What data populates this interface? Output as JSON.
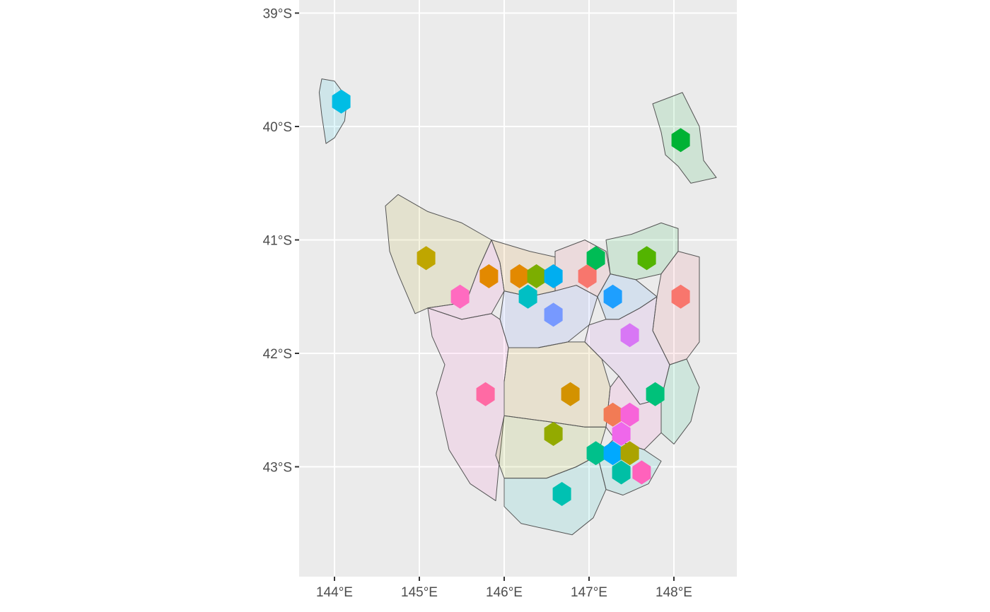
{
  "chart_data": {
    "type": "scatter",
    "subtype": "hexagon map of Tasmania regions",
    "background": "#ebebeb",
    "grid": true,
    "legend": "none",
    "xlim": [
      143.6,
      148.75
    ],
    "ylim": [
      -43.97,
      -39.0
    ],
    "x_ticks": [
      144,
      145,
      146,
      147,
      148
    ],
    "x_tick_labels": [
      "144°E",
      "145°E",
      "146°E",
      "147°E",
      "148°E"
    ],
    "y_ticks": [
      -39,
      -40,
      -41,
      -42,
      -43
    ],
    "y_tick_labels": [
      "39°S",
      "40°S",
      "41°S",
      "42°S",
      "43°S"
    ],
    "regions": [
      {
        "color": "#00c0e0",
        "outline": [
          [
            143.85,
            -39.58
          ],
          [
            144.0,
            -39.6
          ],
          [
            144.15,
            -39.75
          ],
          [
            144.12,
            -39.95
          ],
          [
            144.0,
            -40.1
          ],
          [
            143.9,
            -40.15
          ],
          [
            143.85,
            -39.9
          ],
          [
            143.82,
            -39.7
          ]
        ]
      },
      {
        "color": "#00b030",
        "outline": [
          [
            147.75,
            -39.8
          ],
          [
            148.1,
            -39.7
          ],
          [
            148.3,
            -40.0
          ],
          [
            148.35,
            -40.3
          ],
          [
            148.5,
            -40.45
          ],
          [
            148.2,
            -40.5
          ],
          [
            148.05,
            -40.35
          ],
          [
            147.9,
            -40.25
          ],
          [
            147.85,
            -40.05
          ]
        ]
      },
      {
        "color": "#b0a000",
        "outline": [
          [
            144.6,
            -40.7
          ],
          [
            144.75,
            -40.6
          ],
          [
            145.1,
            -40.75
          ],
          [
            145.5,
            -40.85
          ],
          [
            145.85,
            -41.0
          ],
          [
            145.7,
            -41.25
          ],
          [
            145.55,
            -41.55
          ],
          [
            145.1,
            -41.6
          ],
          [
            144.95,
            -41.65
          ],
          [
            144.75,
            -41.3
          ],
          [
            144.65,
            -41.1
          ]
        ]
      },
      {
        "color": "#ff66cc",
        "outline": [
          [
            145.85,
            -41.0
          ],
          [
            145.95,
            -41.2
          ],
          [
            146.0,
            -41.45
          ],
          [
            145.85,
            -41.65
          ],
          [
            145.5,
            -41.7
          ],
          [
            145.1,
            -41.6
          ],
          [
            145.55,
            -41.55
          ],
          [
            145.7,
            -41.25
          ]
        ]
      },
      {
        "color": "#e08000",
        "outline": [
          [
            145.85,
            -41.0
          ],
          [
            146.3,
            -41.1
          ],
          [
            146.6,
            -41.15
          ],
          [
            146.6,
            -41.45
          ],
          [
            146.3,
            -41.5
          ],
          [
            146.0,
            -41.45
          ],
          [
            145.95,
            -41.2
          ]
        ]
      },
      {
        "color": "#6080ff",
        "outline": [
          [
            146.0,
            -41.45
          ],
          [
            146.3,
            -41.5
          ],
          [
            146.6,
            -41.45
          ],
          [
            146.85,
            -41.4
          ],
          [
            147.1,
            -41.5
          ],
          [
            147.0,
            -41.75
          ],
          [
            146.75,
            -41.9
          ],
          [
            146.4,
            -41.95
          ],
          [
            146.05,
            -41.95
          ],
          [
            145.95,
            -41.7
          ]
        ]
      },
      {
        "color": "#f06070",
        "outline": [
          [
            146.6,
            -41.1
          ],
          [
            146.95,
            -41.0
          ],
          [
            147.2,
            -41.1
          ],
          [
            147.25,
            -41.3
          ],
          [
            147.1,
            -41.5
          ],
          [
            146.85,
            -41.4
          ],
          [
            146.6,
            -41.45
          ]
        ]
      },
      {
        "color": "#00b030",
        "outline": [
          [
            147.2,
            -41.0
          ],
          [
            147.5,
            -40.95
          ],
          [
            147.85,
            -40.85
          ],
          [
            148.05,
            -40.9
          ],
          [
            148.05,
            -41.1
          ],
          [
            147.85,
            -41.3
          ],
          [
            147.55,
            -41.35
          ],
          [
            147.25,
            -41.3
          ]
        ]
      },
      {
        "color": "#f06070",
        "outline": [
          [
            147.85,
            -41.3
          ],
          [
            148.05,
            -41.1
          ],
          [
            148.3,
            -41.15
          ],
          [
            148.3,
            -41.6
          ],
          [
            148.3,
            -41.9
          ],
          [
            148.15,
            -42.05
          ],
          [
            147.95,
            -42.1
          ],
          [
            147.75,
            -41.8
          ],
          [
            147.8,
            -41.5
          ]
        ]
      },
      {
        "color": "#3090ff",
        "outline": [
          [
            147.1,
            -41.5
          ],
          [
            147.25,
            -41.3
          ],
          [
            147.55,
            -41.35
          ],
          [
            147.8,
            -41.5
          ],
          [
            147.6,
            -41.6
          ],
          [
            147.35,
            -41.7
          ],
          [
            147.2,
            -41.7
          ]
        ]
      },
      {
        "color": "#d070f0",
        "outline": [
          [
            147.0,
            -41.75
          ],
          [
            147.2,
            -41.7
          ],
          [
            147.35,
            -41.7
          ],
          [
            147.6,
            -41.6
          ],
          [
            147.8,
            -41.5
          ],
          [
            147.75,
            -41.8
          ],
          [
            147.95,
            -42.1
          ],
          [
            147.85,
            -42.4
          ],
          [
            147.6,
            -42.45
          ],
          [
            147.35,
            -42.2
          ],
          [
            147.15,
            -42.05
          ],
          [
            146.95,
            -41.9
          ]
        ]
      },
      {
        "color": "#00c070",
        "outline": [
          [
            147.95,
            -42.1
          ],
          [
            148.15,
            -42.05
          ],
          [
            148.3,
            -42.3
          ],
          [
            148.2,
            -42.6
          ],
          [
            148.0,
            -42.8
          ],
          [
            147.85,
            -42.7
          ],
          [
            147.85,
            -42.4
          ]
        ]
      },
      {
        "color": "#d09000",
        "outline": [
          [
            146.05,
            -41.95
          ],
          [
            146.4,
            -41.95
          ],
          [
            146.75,
            -41.9
          ],
          [
            146.95,
            -41.9
          ],
          [
            147.15,
            -42.05
          ],
          [
            147.25,
            -42.3
          ],
          [
            147.2,
            -42.65
          ],
          [
            146.95,
            -42.65
          ],
          [
            146.5,
            -42.6
          ],
          [
            146.0,
            -42.55
          ],
          [
            146.0,
            -42.25
          ]
        ]
      },
      {
        "color": "#ff66cc",
        "outline": [
          [
            145.1,
            -41.6
          ],
          [
            145.5,
            -41.7
          ],
          [
            145.85,
            -41.65
          ],
          [
            145.95,
            -41.7
          ],
          [
            146.05,
            -41.95
          ],
          [
            146.0,
            -42.25
          ],
          [
            146.0,
            -42.55
          ],
          [
            145.95,
            -42.9
          ],
          [
            145.9,
            -43.3
          ],
          [
            145.6,
            -43.15
          ],
          [
            145.35,
            -42.85
          ],
          [
            145.2,
            -42.35
          ],
          [
            145.3,
            -42.1
          ],
          [
            145.15,
            -41.85
          ]
        ]
      },
      {
        "color": "#90b000",
        "outline": [
          [
            146.0,
            -42.55
          ],
          [
            146.5,
            -42.6
          ],
          [
            146.95,
            -42.65
          ],
          [
            147.2,
            -42.65
          ],
          [
            147.1,
            -42.9
          ],
          [
            146.85,
            -43.0
          ],
          [
            146.5,
            -43.1
          ],
          [
            146.0,
            -43.1
          ],
          [
            145.9,
            -42.9
          ]
        ]
      },
      {
        "color": "#ff66cc",
        "outline": [
          [
            147.2,
            -42.65
          ],
          [
            147.25,
            -42.3
          ],
          [
            147.35,
            -42.2
          ],
          [
            147.6,
            -42.45
          ],
          [
            147.85,
            -42.4
          ],
          [
            147.85,
            -42.7
          ],
          [
            147.65,
            -42.85
          ],
          [
            147.45,
            -42.8
          ],
          [
            147.3,
            -42.75
          ]
        ]
      },
      {
        "color": "#00c0c0",
        "outline": [
          [
            146.0,
            -43.1
          ],
          [
            146.5,
            -43.1
          ],
          [
            146.85,
            -43.0
          ],
          [
            147.1,
            -42.9
          ],
          [
            147.2,
            -43.2
          ],
          [
            147.05,
            -43.45
          ],
          [
            146.8,
            -43.6
          ],
          [
            146.5,
            -43.55
          ],
          [
            146.2,
            -43.5
          ],
          [
            146.0,
            -43.35
          ]
        ]
      },
      {
        "color": "#00c0c0",
        "outline": [
          [
            147.1,
            -42.9
          ],
          [
            147.3,
            -42.75
          ],
          [
            147.45,
            -42.8
          ],
          [
            147.65,
            -42.85
          ],
          [
            147.85,
            -42.95
          ],
          [
            147.7,
            -43.15
          ],
          [
            147.4,
            -43.25
          ],
          [
            147.2,
            -43.2
          ]
        ]
      }
    ],
    "hexagons": [
      {
        "lon": 144.08,
        "lat": -39.78,
        "color": "#00bde5"
      },
      {
        "lon": 148.08,
        "lat": -40.12,
        "color": "#00b234"
      },
      {
        "lon": 145.08,
        "lat": -41.16,
        "color": "#bfa600"
      },
      {
        "lon": 145.82,
        "lat": -41.32,
        "color": "#e38900"
      },
      {
        "lon": 145.48,
        "lat": -41.5,
        "color": "#ff6bc0"
      },
      {
        "lon": 146.18,
        "lat": -41.32,
        "color": "#e38900"
      },
      {
        "lon": 146.38,
        "lat": -41.32,
        "color": "#7cae00"
      },
      {
        "lon": 146.58,
        "lat": -41.32,
        "color": "#00aef0"
      },
      {
        "lon": 146.28,
        "lat": -41.5,
        "color": "#00bfc4"
      },
      {
        "lon": 146.58,
        "lat": -41.66,
        "color": "#7799ff"
      },
      {
        "lon": 146.98,
        "lat": -41.32,
        "color": "#f8766d"
      },
      {
        "lon": 147.08,
        "lat": -41.16,
        "color": "#00bc55"
      },
      {
        "lon": 147.68,
        "lat": -41.16,
        "color": "#53b400"
      },
      {
        "lon": 147.28,
        "lat": -41.5,
        "color": "#1e9fff"
      },
      {
        "lon": 148.08,
        "lat": -41.5,
        "color": "#f8766d"
      },
      {
        "lon": 147.48,
        "lat": -41.84,
        "color": "#d877f5"
      },
      {
        "lon": 145.78,
        "lat": -42.36,
        "color": "#ff6aa4"
      },
      {
        "lon": 146.78,
        "lat": -42.36,
        "color": "#d39200"
      },
      {
        "lon": 147.78,
        "lat": -42.36,
        "color": "#00c17a"
      },
      {
        "lon": 147.28,
        "lat": -42.54,
        "color": "#f27b55"
      },
      {
        "lon": 147.48,
        "lat": -42.54,
        "color": "#f764d9"
      },
      {
        "lon": 147.38,
        "lat": -42.71,
        "color": "#ef67eb"
      },
      {
        "lon": 146.58,
        "lat": -42.71,
        "color": "#93aa00"
      },
      {
        "lon": 147.08,
        "lat": -42.88,
        "color": "#00c08b"
      },
      {
        "lon": 147.28,
        "lat": -42.88,
        "color": "#00a9ff"
      },
      {
        "lon": 147.48,
        "lat": -42.88,
        "color": "#aba300"
      },
      {
        "lon": 147.38,
        "lat": -43.05,
        "color": "#00bfa5"
      },
      {
        "lon": 147.62,
        "lat": -43.05,
        "color": "#ff62bc"
      },
      {
        "lon": 146.68,
        "lat": -43.24,
        "color": "#00c1b2"
      }
    ]
  }
}
